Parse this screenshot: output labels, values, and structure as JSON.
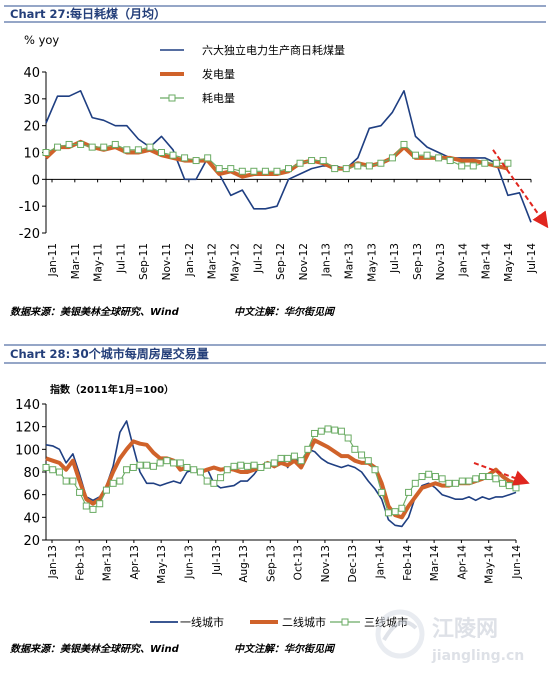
{
  "charts": [
    {
      "header_label": "Chart 27:",
      "header_title": "每日耗煤（月均）",
      "unit": "% yoy",
      "source": "数据来源：美银美林全球研究、Wind",
      "note": "中文注解：华尔街见闻"
    },
    {
      "header_label": "Chart 28:",
      "header_title": "30个城市每周房屋交易量",
      "unit": "指数（2011年1月=100）",
      "source": "数据来源：美银美林全球研究、Wind",
      "note": "中文注解：华尔街见闻"
    }
  ],
  "watermark": {
    "line1": "江陵网",
    "line2": "jiangling.cn"
  },
  "colors": {
    "navy": "#1f3f82",
    "orange": "#d0622a",
    "green": "#6aab63",
    "arrow_red": "#e0261f",
    "header_blue": "#243f7a"
  },
  "chart_data": [
    {
      "type": "line",
      "ylim": [
        -20,
        40
      ],
      "yticks": [
        -20,
        -10,
        0,
        10,
        20,
        30,
        40
      ],
      "grid": false,
      "legend": "top-center",
      "x_tick_labels": [
        "Jan-11",
        "Mar-11",
        "May-11",
        "Jul-11",
        "Sep-11",
        "Nov-11",
        "Jan-12",
        "Mar-12",
        "May-12",
        "Jul-12",
        "Sep-12",
        "Nov-12",
        "Jan-13",
        "Mar-13",
        "May-13",
        "Jul-13",
        "Sep-13",
        "Nov-13",
        "Jan-14",
        "Mar-14",
        "May-14",
        "Jul-14"
      ],
      "x": [
        "Jan-11",
        "Feb-11",
        "Mar-11",
        "Apr-11",
        "May-11",
        "Jun-11",
        "Jul-11",
        "Aug-11",
        "Sep-11",
        "Oct-11",
        "Nov-11",
        "Dec-11",
        "Jan-12",
        "Feb-12",
        "Mar-12",
        "Apr-12",
        "May-12",
        "Jun-12",
        "Jul-12",
        "Aug-12",
        "Sep-12",
        "Oct-12",
        "Nov-12",
        "Dec-12",
        "Jan-13",
        "Feb-13",
        "Mar-13",
        "Apr-13",
        "May-13",
        "Jun-13",
        "Jul-13",
        "Aug-13",
        "Sep-13",
        "Oct-13",
        "Nov-13",
        "Dec-13",
        "Jan-14",
        "Feb-14",
        "Mar-14",
        "Apr-14",
        "May-14",
        "Jun-14",
        "Jul-14"
      ],
      "series": [
        {
          "name": "六大独立电力生产商日耗煤量",
          "style": "line",
          "color": "#1f3f82",
          "values": [
            21,
            31,
            31,
            33,
            23,
            22,
            20,
            20,
            15,
            12,
            16,
            11,
            0,
            0,
            8,
            2,
            -6,
            -4,
            -11,
            -11,
            -10,
            0,
            2,
            4,
            5,
            5,
            4,
            8,
            19,
            20,
            25,
            33,
            16,
            12,
            10,
            8,
            8,
            8,
            8,
            6,
            -6,
            -5,
            -16
          ]
        },
        {
          "name": "发电量",
          "style": "line",
          "color": "#d0622a",
          "values": [
            8,
            12,
            12,
            14,
            12,
            11,
            12,
            10,
            10,
            11,
            9,
            8,
            7,
            7,
            7,
            2,
            3,
            1,
            2,
            2,
            2,
            3,
            6,
            7,
            6,
            4,
            4,
            6,
            5,
            6,
            8,
            12,
            8,
            8,
            8,
            8,
            7,
            7,
            6,
            5,
            4,
            null,
            null
          ]
        },
        {
          "name": "耗电量",
          "style": "line-square",
          "color": "#6aab63",
          "values": [
            10,
            12,
            13,
            13,
            12,
            12,
            13,
            11,
            11,
            12,
            10,
            9,
            8,
            7,
            8,
            4,
            4,
            3,
            3,
            3,
            3,
            4,
            6,
            7,
            7,
            4,
            4,
            5,
            5,
            6,
            8,
            13,
            9,
            9,
            8,
            7,
            5,
            5,
            6,
            6,
            6,
            null,
            null
          ]
        }
      ],
      "trend_arrow": {
        "from": [
          "Apr-14",
          10
        ],
        "to": [
          "Jul-14",
          -17
        ]
      }
    },
    {
      "type": "line",
      "ylim": [
        20,
        140
      ],
      "yticks": [
        20,
        40,
        60,
        80,
        100,
        120,
        140
      ],
      "grid": false,
      "legend": "bottom",
      "x_tick_labels": [
        "Jan-13",
        "Feb-13",
        "Mar-13",
        "Apr-13",
        "May-13",
        "Jun-13",
        "Jul-13",
        "Aug-13",
        "Sep-13",
        "Oct-13",
        "Nov-13",
        "Dec-13",
        "Jan-14",
        "Feb-14",
        "Mar-14",
        "Apr-14",
        "May-14",
        "Jun-14"
      ],
      "series": [
        {
          "name": "一线城市",
          "style": "line",
          "color": "#1f3f82",
          "values": [
            104,
            103,
            100,
            88,
            96,
            78,
            58,
            55,
            58,
            68,
            85,
            115,
            125,
            102,
            80,
            70,
            70,
            68,
            70,
            72,
            70,
            80,
            82,
            78,
            83,
            70,
            66,
            67,
            68,
            72,
            72,
            78,
            86,
            88,
            84,
            94,
            84,
            94,
            86,
            100,
            98,
            92,
            88,
            86,
            84,
            86,
            84,
            80,
            72,
            65,
            56,
            38,
            33,
            32,
            40,
            58,
            68,
            70,
            66,
            60,
            58,
            56,
            56,
            58,
            55,
            58,
            56,
            58,
            58,
            60,
            62
          ]
        },
        {
          "name": "二线城市",
          "style": "line",
          "color": "#d0622a",
          "values": [
            92,
            90,
            88,
            82,
            90,
            72,
            56,
            52,
            56,
            66,
            80,
            92,
            100,
            107,
            105,
            104,
            97,
            92,
            92,
            90,
            82,
            84,
            82,
            80,
            82,
            84,
            82,
            83,
            82,
            80,
            80,
            82,
            84,
            88,
            85,
            88,
            86,
            90,
            84,
            96,
            108,
            105,
            102,
            98,
            94,
            94,
            90,
            88,
            88,
            84,
            70,
            50,
            42,
            40,
            50,
            58,
            66,
            68,
            70,
            68,
            68,
            70,
            70,
            70,
            72,
            74,
            78,
            82,
            76,
            72,
            70
          ]
        },
        {
          "name": "三线城市",
          "style": "line-square",
          "color": "#6aab63",
          "values": [
            84,
            82,
            80,
            72,
            72,
            62,
            50,
            47,
            52,
            64,
            70,
            72,
            82,
            84,
            86,
            86,
            85,
            88,
            90,
            88,
            88,
            84,
            82,
            80,
            72,
            70,
            75,
            82,
            85,
            86,
            85,
            86,
            84,
            86,
            88,
            92,
            92,
            94,
            90,
            100,
            114,
            116,
            118,
            117,
            116,
            110,
            100,
            95,
            90,
            82,
            62,
            44,
            45,
            48,
            62,
            70,
            76,
            78,
            76,
            74,
            70,
            70,
            72,
            72,
            74,
            76,
            76,
            74,
            70,
            68,
            66
          ]
        }
      ],
      "trend_arrow": {
        "from": [
          "May-14",
          80
        ],
        "to": [
          "Jun-14+",
          70
        ]
      }
    }
  ]
}
